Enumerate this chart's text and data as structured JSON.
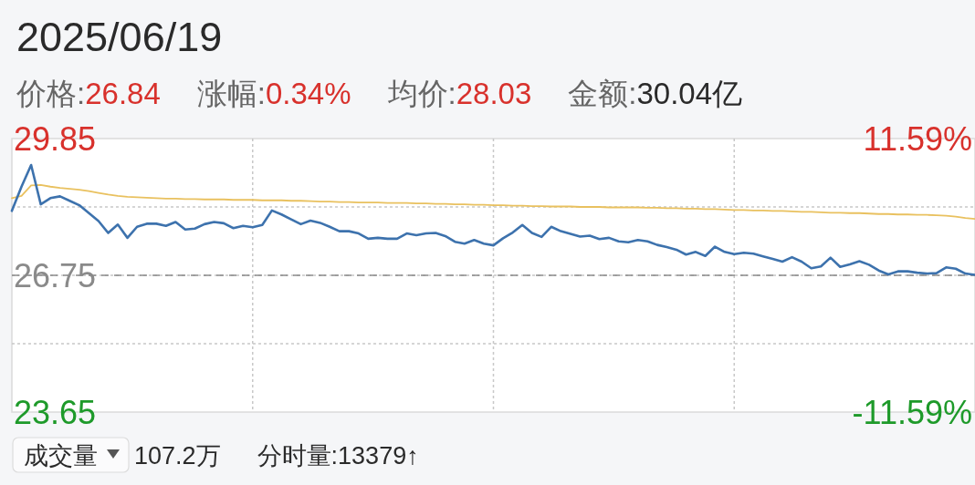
{
  "chart_data": {
    "type": "line",
    "title": "2025/06/19",
    "annotations": [
      "价格:26.84",
      "涨幅:0.34%",
      "均价:28.03",
      "金额:30.04亿",
      "成交量",
      "107.2万",
      "分时量:13379↑"
    ],
    "categories": [
      null,
      null,
      null,
      null,
      null,
      null,
      null,
      null,
      null,
      null,
      null,
      null,
      null,
      null,
      null,
      null,
      null,
      null,
      null,
      null,
      null,
      null,
      null,
      null,
      null,
      null,
      null,
      null,
      null,
      null,
      null,
      null,
      null,
      null,
      null,
      null,
      null,
      null,
      null,
      null,
      null,
      null,
      null,
      null,
      null,
      null,
      null,
      null,
      null,
      null,
      null,
      null,
      null,
      null,
      null,
      null,
      null,
      null,
      null,
      null,
      null,
      null,
      null,
      null,
      null,
      null,
      null,
      null,
      null,
      null,
      null,
      null,
      null,
      null,
      null,
      null,
      null,
      null,
      null,
      null,
      null,
      null,
      null,
      null,
      null,
      null,
      null,
      null,
      null,
      null,
      null,
      null,
      null,
      null,
      null,
      null,
      null,
      null,
      null,
      null,
      null
    ],
    "series": [
      {
        "color": "#3d72ad",
        "values": [
          28.21,
          28.76,
          29.25,
          28.36,
          28.5,
          28.54,
          28.44,
          28.34,
          28.16,
          27.98,
          27.71,
          27.9,
          27.6,
          27.85,
          27.92,
          27.92,
          27.87,
          27.96,
          27.79,
          27.81,
          27.91,
          27.96,
          27.93,
          27.82,
          27.87,
          27.84,
          27.89,
          28.22,
          28.13,
          28.02,
          27.91,
          27.99,
          27.94,
          27.85,
          27.75,
          27.75,
          27.7,
          27.58,
          27.6,
          27.58,
          27.58,
          27.7,
          27.66,
          27.7,
          27.71,
          27.64,
          27.51,
          27.47,
          27.55,
          27.47,
          27.43,
          27.59,
          27.72,
          27.89,
          27.71,
          27.62,
          27.85,
          27.75,
          27.69,
          27.63,
          27.65,
          27.57,
          27.6,
          27.52,
          27.5,
          27.55,
          27.52,
          27.44,
          27.39,
          27.33,
          27.22,
          27.28,
          27.19,
          27.4,
          27.28,
          27.23,
          27.26,
          27.24,
          27.18,
          27.12,
          27.06,
          27.16,
          27.06,
          26.91,
          26.95,
          27.15,
          26.94,
          27.0,
          27.07,
          26.99,
          26.86,
          26.77,
          26.84,
          26.84,
          26.81,
          26.79,
          26.8,
          26.93,
          26.9,
          26.79,
          26.76
        ]
      },
      {
        "color": "#e9c15f",
        "values": [
          28.5,
          28.55,
          28.79,
          28.8,
          28.76,
          28.73,
          28.71,
          28.69,
          28.66,
          28.62,
          28.58,
          28.55,
          28.53,
          28.52,
          28.51,
          28.5,
          28.49,
          28.49,
          28.48,
          28.48,
          28.47,
          28.47,
          28.47,
          28.46,
          28.46,
          28.46,
          28.45,
          28.45,
          28.45,
          28.44,
          28.44,
          28.43,
          28.42,
          28.42,
          28.41,
          28.41,
          28.4,
          28.4,
          28.4,
          28.39,
          28.39,
          28.39,
          28.38,
          28.38,
          28.37,
          28.37,
          28.36,
          28.36,
          28.35,
          28.35,
          28.34,
          28.34,
          28.33,
          28.33,
          28.32,
          28.32,
          28.31,
          28.31,
          28.31,
          28.3,
          28.3,
          28.3,
          28.29,
          28.29,
          28.29,
          28.29,
          28.28,
          28.28,
          28.27,
          28.27,
          28.26,
          28.26,
          28.25,
          28.25,
          28.24,
          28.23,
          28.23,
          28.22,
          28.22,
          28.21,
          28.21,
          28.2,
          28.19,
          28.19,
          28.18,
          28.17,
          28.17,
          28.16,
          28.16,
          28.15,
          28.14,
          28.14,
          28.13,
          28.13,
          28.12,
          28.12,
          28.11,
          28.1,
          28.08,
          28.05,
          28.03
        ]
      }
    ],
    "ylim": [
      23.65,
      29.85
    ],
    "yticks": [
      23.65,
      {
        "value": 25.2,
        "label": null
      },
      26.75,
      {
        "value": 28.3,
        "label": null
      },
      29.85
    ],
    "y2lim": [
      -11.59,
      11.59
    ],
    "y2ticks": [
      {
        "value": -11.59,
        "label": "-11.59%"
      },
      {
        "value": 11.59,
        "label": "11.59%"
      }
    ],
    "ref_lines": [
      {
        "axis": "y",
        "value": 26.75,
        "color": "#8a8a8a",
        "line_style": "dashed"
      }
    ],
    "grid": true,
    "line_style": "solid"
  }
}
